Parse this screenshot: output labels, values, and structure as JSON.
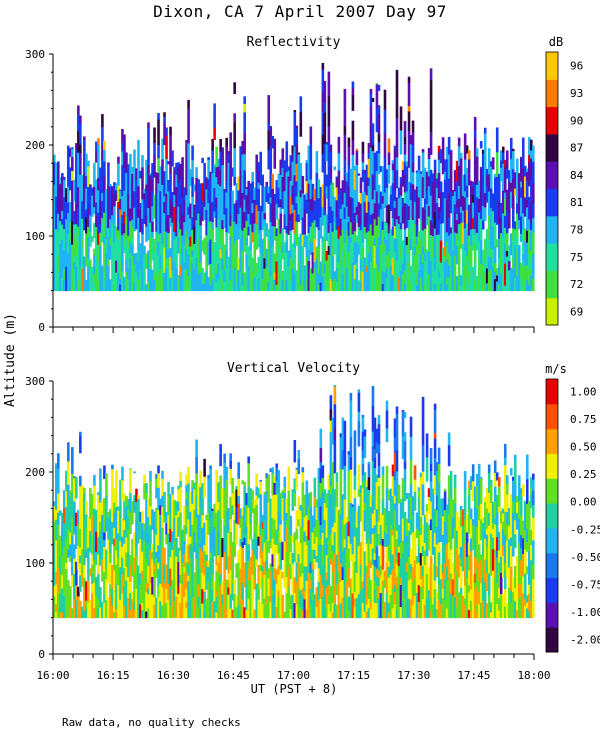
{
  "page": {
    "title": "Dixon, CA  7 April 2007  Day  97",
    "footnote": "Raw data, no quality checks"
  },
  "chart_data": [
    {
      "type": "heatmap",
      "title": "Reflectivity",
      "ylabel": "Altitude (m)",
      "xlabel": "UT  (PST + 8)",
      "x_ticks": [
        "16:00",
        "16:15",
        "16:30",
        "16:45",
        "17:00",
        "17:15",
        "17:30",
        "17:45",
        "18:00"
      ],
      "xlim": [
        "16:00",
        "18:00"
      ],
      "y_ticks": [
        0,
        100,
        200,
        300
      ],
      "ylim": [
        0,
        300
      ],
      "data_altitude_range": [
        40,
        300
      ],
      "colorbar": {
        "unit": "dB",
        "labels": [
          "69",
          "72",
          "75",
          "78",
          "81",
          "84",
          "87",
          "90",
          "93",
          "96"
        ],
        "colors": [
          "#c8f000",
          "#3fe03f",
          "#20e0a0",
          "#20b4f0",
          "#1a3cf0",
          "#5a10b0",
          "#300840",
          "#e80000",
          "#ff7a00",
          "#ffc800"
        ]
      },
      "field": {
        "dominant_low": [
          "#20e0a0",
          "#3fe03f",
          "#20b4f0"
        ],
        "dominant_mid": [
          "#20b4f0",
          "#1a3cf0",
          "#5a10b0"
        ],
        "dominant_high": [
          "#1a3cf0",
          "#5a10b0",
          "#300840"
        ],
        "max_top_altitude": 300
      }
    },
    {
      "type": "heatmap",
      "title": "Vertical Velocity",
      "ylabel": "Altitude (m)",
      "xlabel": "UT  (PST + 8)",
      "x_ticks": [
        "16:00",
        "16:15",
        "16:30",
        "16:45",
        "17:00",
        "17:15",
        "17:30",
        "17:45",
        "18:00"
      ],
      "xlim": [
        "16:00",
        "18:00"
      ],
      "y_ticks": [
        0,
        100,
        200,
        300
      ],
      "ylim": [
        0,
        300
      ],
      "data_altitude_range": [
        40,
        300
      ],
      "colorbar": {
        "unit": "m/s",
        "labels": [
          "-2.00",
          "-1.00",
          "-0.75",
          "-0.50",
          "-0.25",
          "0.00",
          "0.25",
          "0.50",
          "0.75",
          "1.00"
        ],
        "colors": [
          "#300840",
          "#5a10b0",
          "#1a3cf0",
          "#1a78f0",
          "#20b4f0",
          "#20d0a0",
          "#60e020",
          "#f0f000",
          "#ffa000",
          "#ff5000",
          "#e80000"
        ]
      },
      "field": {
        "dominant_low": [
          "#f0f000",
          "#60e020",
          "#20d0a0",
          "#ffa000"
        ],
        "dominant_mid": [
          "#20d0a0",
          "#20b4f0",
          "#60e020",
          "#f0f000"
        ],
        "dominant_high": [
          "#20b4f0",
          "#1a78f0",
          "#1a3cf0"
        ],
        "max_top_altitude": 300
      }
    }
  ]
}
